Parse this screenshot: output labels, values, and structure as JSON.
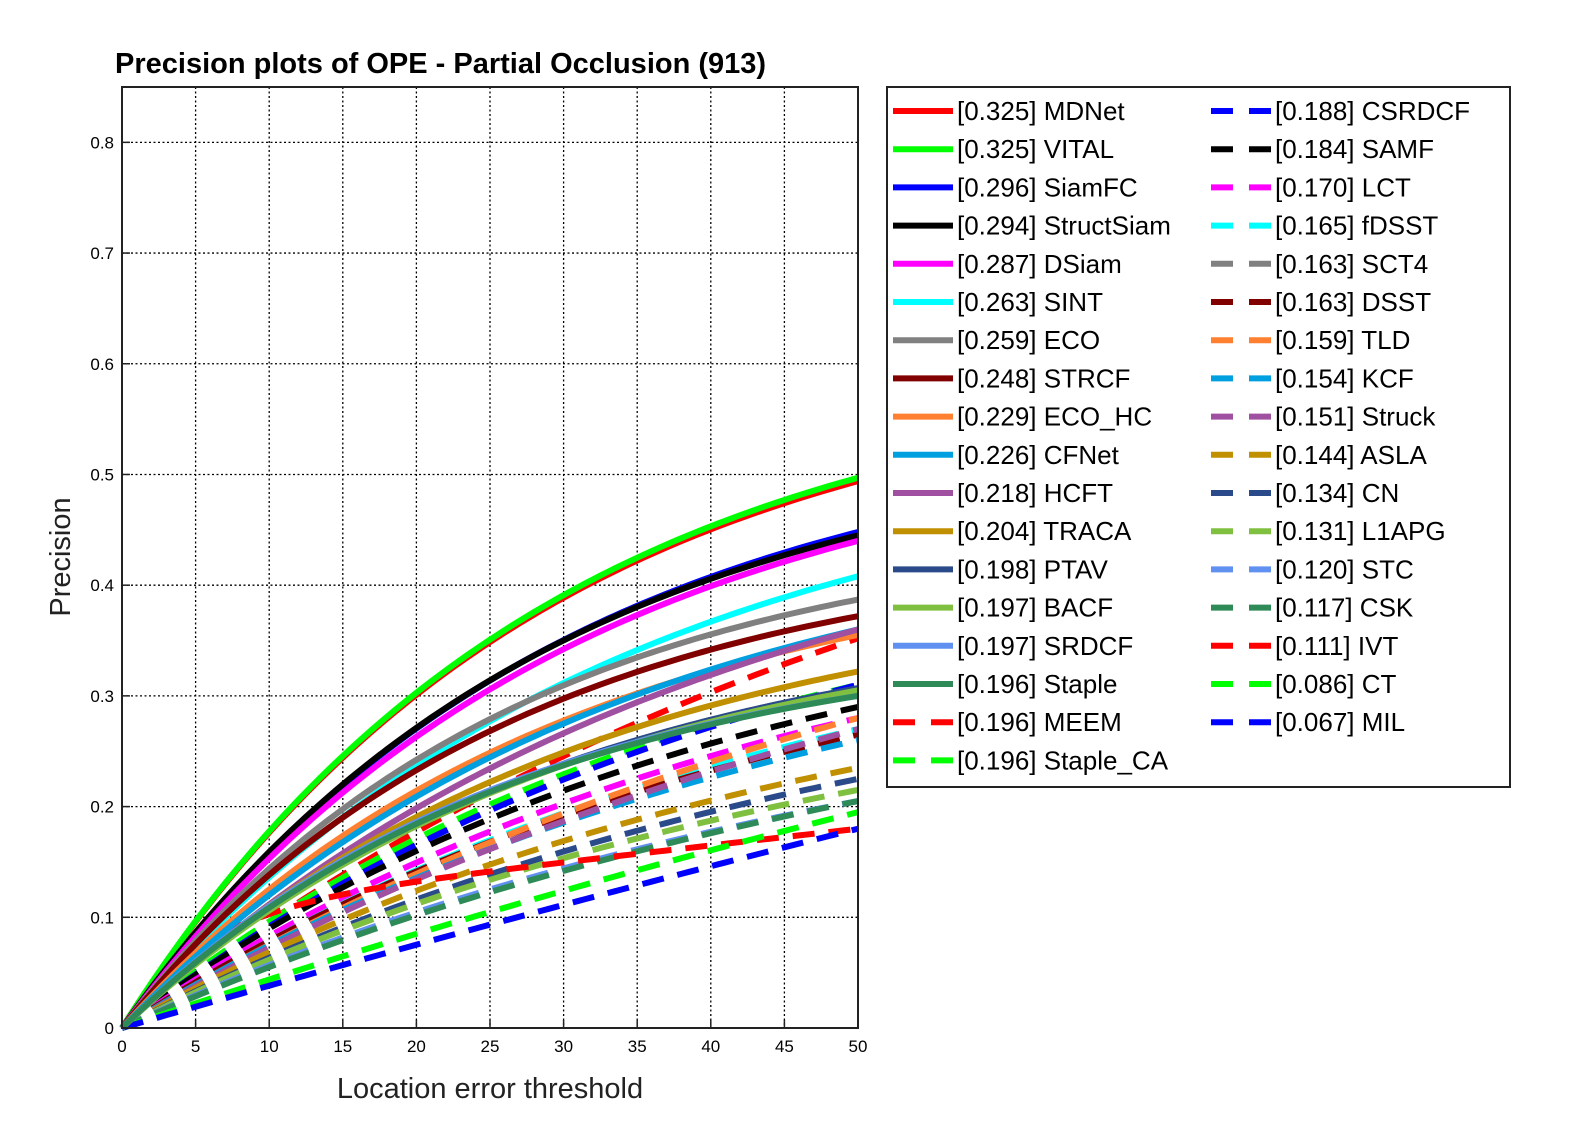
{
  "chart_data": {
    "type": "line",
    "title": "Precision plots of OPE - Partial Occlusion (913)",
    "xlabel": "Location error threshold",
    "ylabel": "Precision",
    "xlim": [
      0,
      50
    ],
    "ylim": [
      0,
      0.85
    ],
    "xticks": [
      "0",
      "5",
      "10",
      "15",
      "20",
      "25",
      "30",
      "35",
      "40",
      "45",
      "50"
    ],
    "yticks": [
      "0",
      "0.1",
      "0.2",
      "0.3",
      "0.4",
      "0.5",
      "0.6",
      "0.7",
      "0.8"
    ],
    "grid": true,
    "legend_position": "outside-right",
    "series": [
      {
        "name": "[0.325] MDNet",
        "color": "#ff0000",
        "style": "solid",
        "end": 0.494,
        "k": 0.035
      },
      {
        "name": "[0.325] VITAL",
        "color": "#00ff00",
        "style": "solid",
        "end": 0.497,
        "k": 0.035
      },
      {
        "name": "[0.296] SiamFC",
        "color": "#0000ff",
        "style": "solid",
        "end": 0.448,
        "k": 0.034
      },
      {
        "name": "[0.294] StructSiam",
        "color": "#000000",
        "style": "solid",
        "end": 0.445,
        "k": 0.035
      },
      {
        "name": "[0.287] DSiam",
        "color": "#ff00ff",
        "style": "solid",
        "end": 0.44,
        "k": 0.033
      },
      {
        "name": "[0.263] SINT",
        "color": "#00ffff",
        "style": "solid",
        "end": 0.408,
        "k": 0.03
      },
      {
        "name": "[0.259] ECO",
        "color": "#808080",
        "style": "solid",
        "end": 0.387,
        "k": 0.038
      },
      {
        "name": "[0.248] STRCF",
        "color": "#800000",
        "style": "solid",
        "end": 0.372,
        "k": 0.038
      },
      {
        "name": "[0.229] ECO_HC",
        "color": "#ff8030",
        "style": "solid",
        "end": 0.355,
        "k": 0.034
      },
      {
        "name": "[0.226] CFNet",
        "color": "#00a0e0",
        "style": "solid",
        "end": 0.36,
        "k": 0.03
      },
      {
        "name": "[0.218] HCFT",
        "color": "#a050a0",
        "style": "solid",
        "end": 0.36,
        "k": 0.025
      },
      {
        "name": "[0.204] TRACA",
        "color": "#c09000",
        "style": "solid",
        "end": 0.322,
        "k": 0.032
      },
      {
        "name": "[0.198] PTAV",
        "color": "#2a4a8a",
        "style": "solid",
        "end": 0.307,
        "k": 0.033
      },
      {
        "name": "[0.197] BACF",
        "color": "#80c040",
        "style": "solid",
        "end": 0.305,
        "k": 0.033
      },
      {
        "name": "[0.197] SRDCF",
        "color": "#6090f0",
        "style": "solid",
        "end": 0.3,
        "k": 0.037
      },
      {
        "name": "[0.196] Staple",
        "color": "#2e8b57",
        "style": "solid",
        "end": 0.3,
        "k": 0.036
      },
      {
        "name": "[0.196] MEEM",
        "color": "#ff0000",
        "style": "dashed",
        "end": 0.352,
        "k": 0.017
      },
      {
        "name": "[0.196] Staple_CA",
        "color": "#00ff00",
        "style": "dashed",
        "end": 0.31,
        "k": 0.025
      },
      {
        "name": "[0.188] CSRDCF",
        "color": "#0000ff",
        "style": "dashed",
        "end": 0.31,
        "k": 0.022
      },
      {
        "name": "[0.184] SAMF",
        "color": "#000000",
        "style": "dashed",
        "end": 0.29,
        "k": 0.025
      },
      {
        "name": "[0.170] LCT",
        "color": "#ff00ff",
        "style": "dashed",
        "end": 0.28,
        "k": 0.022
      },
      {
        "name": "[0.165] fDSST",
        "color": "#00ffff",
        "style": "dashed",
        "end": 0.27,
        "k": 0.021
      },
      {
        "name": "[0.163] SCT4",
        "color": "#808080",
        "style": "dashed",
        "end": 0.265,
        "k": 0.022
      },
      {
        "name": "[0.163] DSST",
        "color": "#800000",
        "style": "dashed",
        "end": 0.265,
        "k": 0.022
      },
      {
        "name": "[0.159] TLD",
        "color": "#ff8030",
        "style": "dashed",
        "end": 0.28,
        "k": 0.016
      },
      {
        "name": "[0.154] KCF",
        "color": "#00a0e0",
        "style": "dashed",
        "end": 0.26,
        "k": 0.02
      },
      {
        "name": "[0.151] Struck",
        "color": "#a050a0",
        "style": "dashed",
        "end": 0.27,
        "k": 0.016
      },
      {
        "name": "[0.144] ASLA",
        "color": "#c09000",
        "style": "dashed",
        "end": 0.235,
        "k": 0.021
      },
      {
        "name": "[0.134] CN",
        "color": "#2a4a8a",
        "style": "dashed",
        "end": 0.225,
        "k": 0.019
      },
      {
        "name": "[0.131] L1APG",
        "color": "#80c040",
        "style": "dashed",
        "end": 0.215,
        "k": 0.02
      },
      {
        "name": "[0.120] STC",
        "color": "#6090f0",
        "style": "dashed",
        "end": 0.205,
        "k": 0.018
      },
      {
        "name": "[0.117] CSK",
        "color": "#2e8b57",
        "style": "dashed",
        "end": 0.205,
        "k": 0.016
      },
      {
        "name": "[0.111] IVT",
        "color": "#ff0000",
        "style": "dashed",
        "end": 0.18,
        "k": 0.03,
        "shape": "ivt"
      },
      {
        "name": "[0.086] CT",
        "color": "#00ff00",
        "style": "dashed",
        "end": 0.195,
        "k": 0.006
      },
      {
        "name": "[0.067] MIL",
        "color": "#0000ff",
        "style": "dashed",
        "end": 0.18,
        "k": 0.003
      }
    ]
  }
}
